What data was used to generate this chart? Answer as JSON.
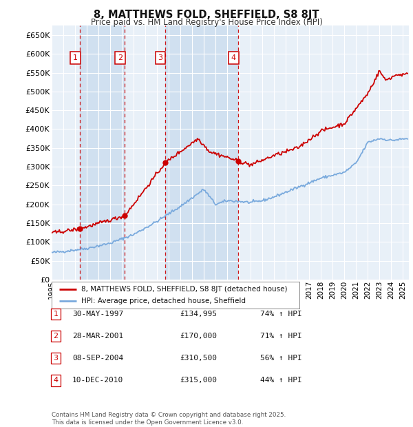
{
  "title": "8, MATTHEWS FOLD, SHEFFIELD, S8 8JT",
  "subtitle": "Price paid vs. HM Land Registry's House Price Index (HPI)",
  "ylim": [
    0,
    675000
  ],
  "yticks": [
    0,
    50000,
    100000,
    150000,
    200000,
    250000,
    300000,
    350000,
    400000,
    450000,
    500000,
    550000,
    600000,
    650000
  ],
  "xlim_start": 1995.0,
  "xlim_end": 2025.5,
  "bg_color": "#e8f0f8",
  "band_color": "#d0e0f0",
  "grid_color": "#ffffff",
  "sale_color": "#cc0000",
  "hpi_color": "#7aaadd",
  "sales": [
    {
      "date_num": 1997.41,
      "price": 134995,
      "label": "1"
    },
    {
      "date_num": 2001.24,
      "price": 170000,
      "label": "2"
    },
    {
      "date_num": 2004.69,
      "price": 310500,
      "label": "3"
    },
    {
      "date_num": 2010.94,
      "price": 315000,
      "label": "4"
    }
  ],
  "legend_entries": [
    "8, MATTHEWS FOLD, SHEFFIELD, S8 8JT (detached house)",
    "HPI: Average price, detached house, Sheffield"
  ],
  "table_rows": [
    {
      "num": "1",
      "date": "30-MAY-1997",
      "price": "£134,995",
      "change": "74% ↑ HPI"
    },
    {
      "num": "2",
      "date": "28-MAR-2001",
      "price": "£170,000",
      "change": "71% ↑ HPI"
    },
    {
      "num": "3",
      "date": "08-SEP-2004",
      "price": "£310,500",
      "change": "56% ↑ HPI"
    },
    {
      "num": "4",
      "date": "10-DEC-2010",
      "price": "£315,000",
      "change": "44% ↑ HPI"
    }
  ],
  "footer": "Contains HM Land Registry data © Crown copyright and database right 2025.\nThis data is licensed under the Open Government Licence v3.0."
}
